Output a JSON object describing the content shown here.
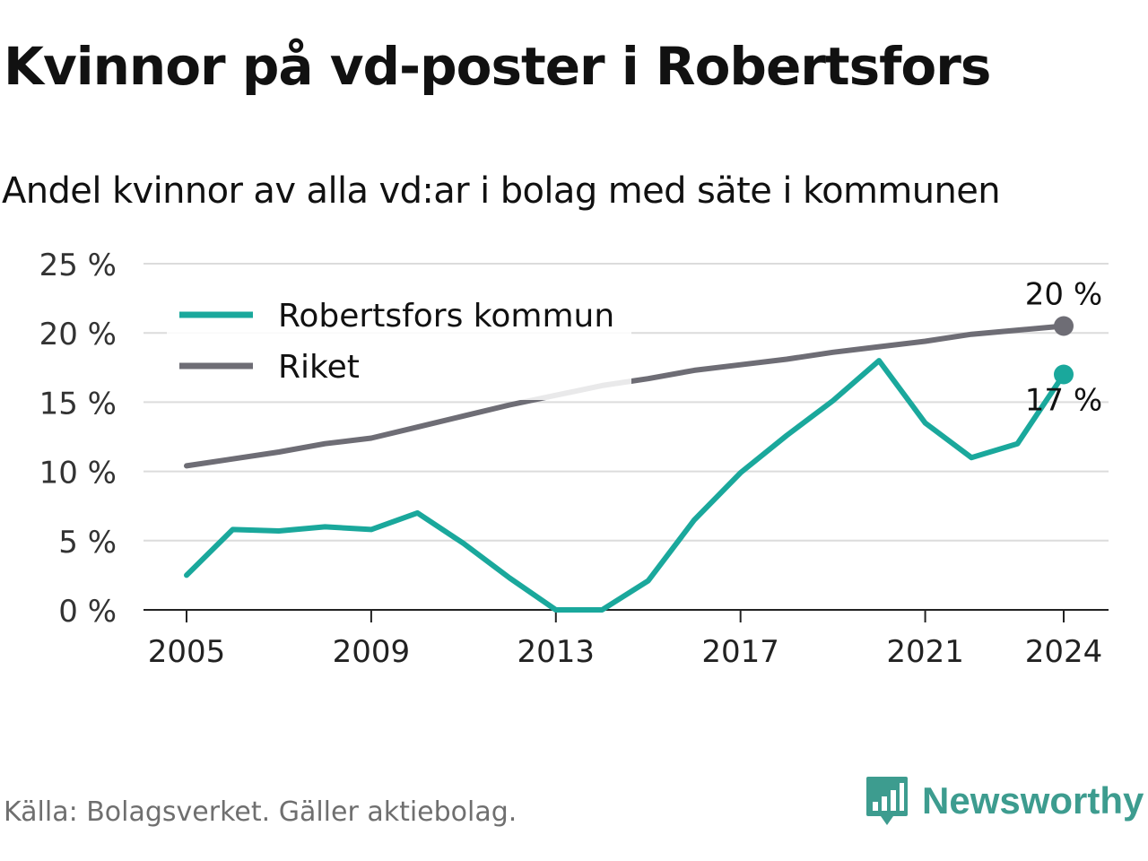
{
  "header": {
    "title": "Kvinnor på vd-poster i Robertsfors",
    "subtitle": "Andel kvinnor av alla vd:ar i bolag med säte i kommunen"
  },
  "footer": {
    "source": "Källa: Bolagsverket. Gäller aktiebolag.",
    "brand_name": "Newsworthy",
    "brand_icon": "bar-chart-speech-bubble-icon",
    "brand_color": "#3d9c8f"
  },
  "chart_data": {
    "type": "line",
    "x": [
      2005,
      2006,
      2007,
      2008,
      2009,
      2010,
      2011,
      2012,
      2013,
      2014,
      2015,
      2016,
      2017,
      2018,
      2019,
      2020,
      2021,
      2022,
      2023,
      2024
    ],
    "x_ticks": [
      "2005",
      "2009",
      "2013",
      "2017",
      "2021",
      "2024"
    ],
    "y_ticks": [
      "0 %",
      "5 %",
      "10 %",
      "15 %",
      "20 %",
      "25 %"
    ],
    "ylim": [
      0,
      25
    ],
    "grid": true,
    "legend_position": "top-left",
    "series": [
      {
        "name": "Robertsfors kommun",
        "color": "#1aa89c",
        "values": [
          2.5,
          5.8,
          5.7,
          6.0,
          5.8,
          7.0,
          4.8,
          2.3,
          0.0,
          0.0,
          2.1,
          6.5,
          9.9,
          12.6,
          15.1,
          18.0,
          13.5,
          11.0,
          12.0,
          17.0
        ],
        "end_label": "17 %"
      },
      {
        "name": "Riket",
        "color": "#6e6d75",
        "values": [
          10.4,
          10.9,
          11.4,
          12.0,
          12.4,
          13.2,
          14.0,
          14.8,
          15.5,
          16.2,
          16.7,
          17.3,
          17.7,
          18.1,
          18.6,
          19.0,
          19.4,
          19.9,
          20.2,
          20.5
        ],
        "end_label": "20 %"
      }
    ]
  }
}
